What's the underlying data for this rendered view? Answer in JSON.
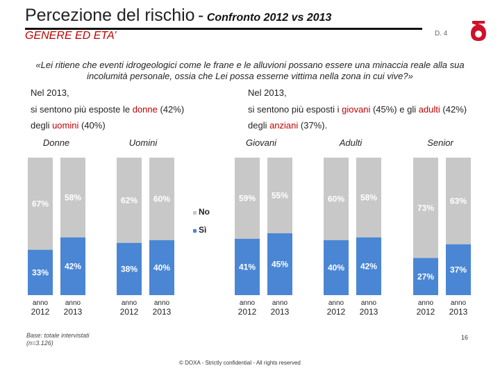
{
  "header": {
    "title": "Percezione del rischio",
    "separator": "-",
    "subtitle": "Confronto 2012 vs 2013",
    "section": "GENERE ED ETA’",
    "page_code": "D. 4"
  },
  "quote": "«Lei ritiene che eventi idrogeologici come le frane e le alluvioni possano essere una minaccia reale alla sua incolumità personale, ossia che Lei possa esserne vittima nella zona in cui vive?»",
  "notes": {
    "left": {
      "intro": "Nel 2013,",
      "l1_a": "si sentono più esposte le ",
      "l1_hl": "donne",
      "l1_b": " (42%)",
      "l2_a": "degli ",
      "l2_hl": "uomini",
      "l2_b": " (40%)"
    },
    "right": {
      "intro": "Nel 2013,",
      "l1_a": "si sentono più esposti i ",
      "l1_hl1": "giovani",
      "l1_b": " (45%) e gli ",
      "l1_hl2": "adulti",
      "l1_c": " (42%)",
      "l2_a": "degli ",
      "l2_hl": "anziani",
      "l2_b": " (37%)."
    }
  },
  "chart_data": {
    "type": "bar",
    "stacked": true,
    "percent": true,
    "series_names": [
      "Sì",
      "No"
    ],
    "legend": [
      {
        "name": "No",
        "color": "#c8c8c8"
      },
      {
        "name": "Sì",
        "color": "#4a86d4"
      }
    ],
    "bar_label_line1": "anno",
    "groups": [
      {
        "name": "Donne",
        "bars": [
          {
            "year": "2012",
            "si": 33,
            "no": 67
          },
          {
            "year": "2013",
            "si": 42,
            "no": 58
          }
        ]
      },
      {
        "name": "Uomini",
        "bars": [
          {
            "year": "2012",
            "si": 38,
            "no": 62
          },
          {
            "year": "2013",
            "si": 40,
            "no": 60
          }
        ]
      },
      {
        "name": "Giovani",
        "bars": [
          {
            "year": "2012",
            "si": 41,
            "no": 59
          },
          {
            "year": "2013",
            "si": 45,
            "no": 55
          }
        ]
      },
      {
        "name": "Adulti",
        "bars": [
          {
            "year": "2012",
            "si": 40,
            "no": 60
          },
          {
            "year": "2013",
            "si": 42,
            "no": 58
          }
        ]
      },
      {
        "name": "Senior",
        "bars": [
          {
            "year": "2012",
            "si": 27,
            "no": 73
          },
          {
            "year": "2013",
            "si": 37,
            "no": 63
          }
        ]
      }
    ],
    "colors": {
      "si": "#4a86d4",
      "no": "#c8c8c8"
    }
  },
  "base_note_l1": "Base: totale intervistati",
  "base_note_l2": "(n=3.126)",
  "footer": "© DOXA - Strictly confidential - All rights reserved",
  "page_number": "16"
}
